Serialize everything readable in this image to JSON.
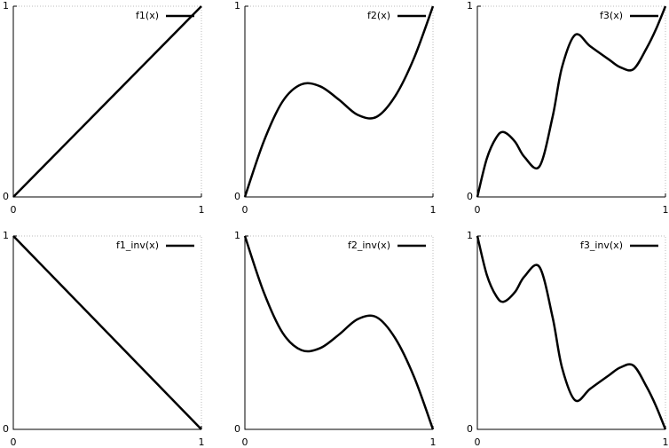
{
  "chart_data": [
    {
      "type": "line",
      "xlim": [
        0,
        1
      ],
      "ylim": [
        0,
        1
      ],
      "xticks": [
        0,
        1
      ],
      "yticks": [
        0,
        1
      ],
      "legend": "upper right",
      "series": [
        {
          "name": "f1(x)",
          "color": "#000000",
          "x": [
            0,
            1
          ],
          "values": [
            0,
            1
          ]
        }
      ]
    },
    {
      "type": "line",
      "xlim": [
        0,
        1
      ],
      "ylim": [
        0,
        1
      ],
      "xticks": [
        0,
        1
      ],
      "yticks": [
        0,
        1
      ],
      "legend": "upper right",
      "series": [
        {
          "name": "f2(x)",
          "color": "#000000",
          "x": [
            0,
            0.1,
            0.2,
            0.3,
            0.4,
            0.5,
            0.6,
            0.7,
            0.8,
            0.9,
            1
          ],
          "values": [
            0,
            0.29,
            0.5,
            0.59,
            0.58,
            0.51,
            0.43,
            0.42,
            0.53,
            0.73,
            1
          ]
        }
      ]
    },
    {
      "type": "line",
      "xlim": [
        0,
        1
      ],
      "ylim": [
        0,
        1
      ],
      "xticks": [
        0,
        1
      ],
      "yticks": [
        0,
        1
      ],
      "legend": "upper right",
      "series": [
        {
          "name": "f3(x)",
          "color": "#000000",
          "x": [
            0,
            0.05,
            0.1,
            0.14,
            0.2,
            0.25,
            0.33,
            0.4,
            0.45,
            0.52,
            0.6,
            0.7,
            0.76,
            0.83,
            0.9,
            0.95,
            1
          ],
          "values": [
            0,
            0.2,
            0.31,
            0.34,
            0.29,
            0.21,
            0.16,
            0.42,
            0.68,
            0.85,
            0.79,
            0.72,
            0.68,
            0.67,
            0.78,
            0.88,
            1
          ]
        }
      ]
    },
    {
      "type": "line",
      "xlim": [
        0,
        1
      ],
      "ylim": [
        0,
        1
      ],
      "xticks": [
        0,
        1
      ],
      "yticks": [
        0,
        1
      ],
      "legend": "upper right",
      "series": [
        {
          "name": "f1_inv(x)",
          "color": "#000000",
          "x": [
            0,
            1
          ],
          "values": [
            1,
            0
          ]
        }
      ]
    },
    {
      "type": "line",
      "xlim": [
        0,
        1
      ],
      "ylim": [
        0,
        1
      ],
      "xticks": [
        0,
        1
      ],
      "yticks": [
        0,
        1
      ],
      "legend": "upper right",
      "series": [
        {
          "name": "f2_inv(x)",
          "color": "#000000",
          "x": [
            0,
            0.1,
            0.2,
            0.3,
            0.4,
            0.5,
            0.6,
            0.7,
            0.8,
            0.9,
            1
          ],
          "values": [
            1,
            0.71,
            0.5,
            0.41,
            0.42,
            0.49,
            0.57,
            0.58,
            0.47,
            0.27,
            0
          ]
        }
      ]
    },
    {
      "type": "line",
      "xlim": [
        0,
        1
      ],
      "ylim": [
        0,
        1
      ],
      "xticks": [
        0,
        1
      ],
      "yticks": [
        0,
        1
      ],
      "legend": "upper right",
      "series": [
        {
          "name": "f3_inv(x)",
          "color": "#000000",
          "x": [
            0,
            0.05,
            0.1,
            0.14,
            0.2,
            0.25,
            0.33,
            0.4,
            0.45,
            0.52,
            0.6,
            0.7,
            0.76,
            0.83,
            0.9,
            0.95,
            1
          ],
          "values": [
            1,
            0.8,
            0.69,
            0.66,
            0.71,
            0.79,
            0.84,
            0.58,
            0.32,
            0.15,
            0.21,
            0.28,
            0.32,
            0.33,
            0.22,
            0.12,
            0
          ]
        }
      ]
    }
  ]
}
